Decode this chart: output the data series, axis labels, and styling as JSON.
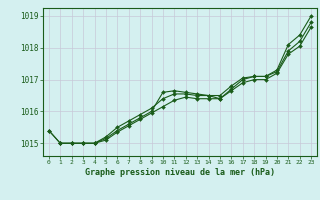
{
  "series": [
    {
      "x": [
        0,
        1,
        2,
        3,
        4,
        5,
        6,
        7,
        8,
        9,
        10,
        11,
        12,
        13,
        14,
        15,
        16,
        17,
        18,
        19,
        20,
        21,
        22,
        23
      ],
      "y": [
        1015.4,
        1015.0,
        1015.0,
        1015.0,
        1015.0,
        1015.2,
        1015.5,
        1015.7,
        1015.9,
        1016.1,
        1016.4,
        1016.55,
        1016.55,
        1016.5,
        1016.5,
        1016.5,
        1016.8,
        1017.05,
        1017.1,
        1017.1,
        1017.3,
        1018.1,
        1018.4,
        1019.0
      ]
    },
    {
      "x": [
        0,
        1,
        2,
        3,
        4,
        5,
        6,
        7,
        8,
        9,
        10,
        11,
        12,
        13,
        14,
        15,
        16,
        17,
        18,
        19,
        20,
        21,
        22,
        23
      ],
      "y": [
        1015.4,
        1015.0,
        1015.0,
        1015.0,
        1015.0,
        1015.1,
        1015.35,
        1015.55,
        1015.75,
        1015.95,
        1016.15,
        1016.35,
        1016.45,
        1016.4,
        1016.4,
        1016.4,
        1016.65,
        1016.9,
        1017.0,
        1017.0,
        1017.2,
        1017.8,
        1018.05,
        1018.65
      ]
    },
    {
      "x": [
        1,
        2,
        3,
        4,
        5,
        6,
        7,
        8,
        9,
        10,
        11,
        12,
        13,
        14,
        15,
        16,
        17,
        18,
        19,
        20,
        21,
        22,
        23
      ],
      "y": [
        1015.0,
        1015.0,
        1015.0,
        1015.0,
        1015.15,
        1015.4,
        1015.6,
        1015.8,
        1016.0,
        1016.6,
        1016.65,
        1016.6,
        1016.55,
        1016.5,
        1016.4,
        1016.7,
        1017.0,
        1017.1,
        1017.1,
        1017.25,
        1017.9,
        1018.2,
        1018.8
      ]
    }
  ],
  "line_color": "#1a5c1a",
  "marker": "D",
  "marker_size": 2.0,
  "line_width": 0.8,
  "xlim": [
    -0.5,
    23.5
  ],
  "ylim": [
    1014.6,
    1019.25
  ],
  "yticks": [
    1015,
    1016,
    1017,
    1018,
    1019
  ],
  "xticks": [
    0,
    1,
    2,
    3,
    4,
    5,
    6,
    7,
    8,
    9,
    10,
    11,
    12,
    13,
    14,
    15,
    16,
    17,
    18,
    19,
    20,
    21,
    22,
    23
  ],
  "xlabel": "Graphe pression niveau de la mer (hPa)",
  "background_color": "#d4f0f0",
  "grid_color": "#c8c8d8",
  "tick_color": "#1a5c1a",
  "label_color": "#1a5c1a",
  "axis_bg": "#d4f0f0"
}
